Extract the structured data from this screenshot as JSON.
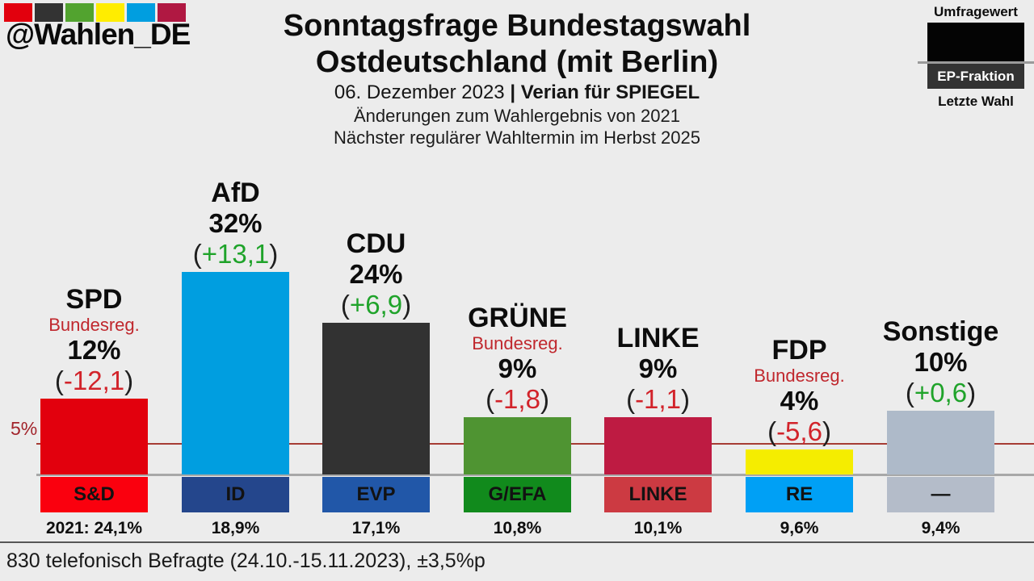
{
  "branding": {
    "handle": "@Wahlen_DE",
    "logo_colors": [
      "#e2000d",
      "#333333",
      "#52a32f",
      "#ffed00",
      "#009ee0",
      "#b01842"
    ]
  },
  "header": {
    "title_line1": "Sonntagsfrage Bundestagswahl",
    "title_line2": "Ostdeutschland (mit Berlin)",
    "date_part": "06. Dezember 2023 ",
    "source_part": "| Verian für SPIEGEL",
    "subtitle1": "Änderungen zum Wahlergebnis von 2021",
    "subtitle2": "Nächster regulärer Wahltermin im Herbst 2025"
  },
  "legend": {
    "poll_label": "Umfragewert",
    "ep_label": "EP-Fraktion",
    "last_label": "Letzte Wahl"
  },
  "axis": {
    "threshold_label": "5%"
  },
  "footer": {
    "note": "830 telefonisch Befragte (24.10.-15.11.2023), ±3,5%p"
  },
  "chart_data": {
    "type": "bar",
    "title": "Sonntagsfrage Bundestagswahl Ostdeutschland (mit Berlin)",
    "ylabel": "",
    "xlabel": "",
    "ylim": [
      0,
      34
    ],
    "threshold_line_pct": 5,
    "government_label": "Bundesreg.",
    "categories": [
      "SPD",
      "AfD",
      "CDU",
      "GRÜNE",
      "LINKE",
      "FDP",
      "Sonstige"
    ],
    "values": [
      12,
      32,
      24,
      9,
      9,
      4,
      10
    ],
    "parties": [
      {
        "name": "SPD",
        "in_government": true,
        "value_pct": 12,
        "value_label": "12%",
        "change_label": "-12,1",
        "change_pct": -12.1,
        "color": "#e2000d",
        "ep_group": "S&D",
        "ep_color": "#fa000e",
        "last_election_label": "2021: 24,1%",
        "last_election_pct": 24.1
      },
      {
        "name": "AfD",
        "in_government": false,
        "value_pct": 32,
        "value_label": "32%",
        "change_label": "+13,1",
        "change_pct": 13.1,
        "color": "#009ee0",
        "ep_group": "ID",
        "ep_color": "#24468c",
        "last_election_label": "18,9%",
        "last_election_pct": 18.9
      },
      {
        "name": "CDU",
        "in_government": false,
        "value_pct": 24,
        "value_label": "24%",
        "change_label": "+6,9",
        "change_pct": 6.9,
        "color": "#323232",
        "ep_group": "EVP",
        "ep_color": "#2157a8",
        "last_election_label": "17,1%",
        "last_election_pct": 17.1
      },
      {
        "name": "GRÜNE",
        "in_government": true,
        "value_pct": 9,
        "value_label": "9%",
        "change_label": "-1,8",
        "change_pct": -1.8,
        "color": "#4f9432",
        "ep_group": "G/EFA",
        "ep_color": "#118a1c",
        "last_election_label": "10,8%",
        "last_election_pct": 10.8
      },
      {
        "name": "LINKE",
        "in_government": false,
        "value_pct": 9,
        "value_label": "9%",
        "change_label": "-1,1",
        "change_pct": -1.1,
        "color": "#be1b42",
        "ep_group": "LINKE",
        "ep_color": "#cc3a42",
        "last_election_label": "10,1%",
        "last_election_pct": 10.1
      },
      {
        "name": "FDP",
        "in_government": true,
        "value_pct": 4,
        "value_label": "4%",
        "change_label": "-5,6",
        "change_pct": -5.6,
        "color": "#f5ed00",
        "ep_group": "RE",
        "ep_color": "#00a0f5",
        "last_election_label": "9,6%",
        "last_election_pct": 9.6
      },
      {
        "name": "Sonstige",
        "in_government": false,
        "value_pct": 10,
        "value_label": "10%",
        "change_label": "+0,6",
        "change_pct": 0.6,
        "color": "#aebac9",
        "ep_group": "—",
        "ep_color": "#b4bcc9",
        "last_election_label": "9,4%",
        "last_election_pct": 9.4
      }
    ],
    "legend_entries": [
      "Umfragewert",
      "EP-Fraktion",
      "Letzte Wahl"
    ],
    "annotations": [
      "5%",
      "830 telefonisch Befragte (24.10.-15.11.2023), ±3,5%p"
    ],
    "grid": false
  },
  "colors": {
    "background": "#ececec",
    "baseline": "#a8a8a8",
    "threshold_line": "#a63c34",
    "threshold_text": "#a2242b",
    "government_text": "#c0272d",
    "change_negative": "#d2232a",
    "change_positive": "#1fa32a"
  }
}
